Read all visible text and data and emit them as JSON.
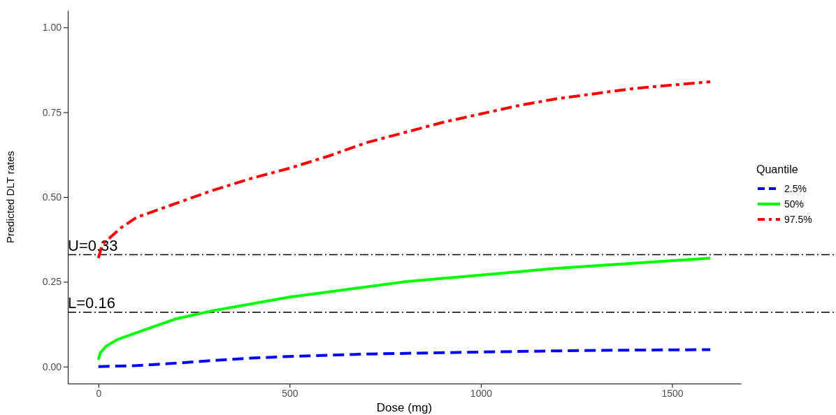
{
  "chart_data": {
    "type": "line",
    "xlabel": "Dose (mg)",
    "ylabel": "Predicted DLT rates",
    "legend_title": "Quantile",
    "legend": "right",
    "grid": false,
    "xlim": [
      -80,
      1680
    ],
    "ylim": [
      -0.05,
      1.05
    ],
    "xticks": [
      0,
      500,
      1000,
      1500
    ],
    "yticks": [
      {
        "value": 0,
        "label": "0.00"
      },
      {
        "value": 0.25,
        "label": "0.25"
      },
      {
        "value": 0.5,
        "label": "0.50"
      },
      {
        "value": 0.75,
        "label": "0.75"
      },
      {
        "value": 1,
        "label": "1.00"
      }
    ],
    "ref_lines": [
      {
        "axis": "y",
        "value": 0.33,
        "label": "U=0.33",
        "color": "#000000",
        "line_style": "dashed"
      },
      {
        "axis": "y",
        "value": 0.16,
        "label": "L=0.16",
        "color": "#000000",
        "line_style": "dashed"
      }
    ],
    "series": [
      {
        "name": "2.5%",
        "color": "#0000ff",
        "line_style": "dashed",
        "x": [
          0,
          100,
          200,
          300,
          400,
          500,
          700,
          1000,
          1300,
          1600
        ],
        "values": [
          0,
          0.003,
          0.01,
          0.018,
          0.025,
          0.03,
          0.037,
          0.043,
          0.048,
          0.05
        ]
      },
      {
        "name": "50%",
        "color": "#00ff00",
        "line_style": "solid",
        "x": [
          0,
          5,
          20,
          50,
          100,
          200,
          300,
          400,
          500,
          600,
          700,
          800,
          900,
          1000,
          1200,
          1400,
          1600
        ],
        "values": [
          0.02,
          0.04,
          0.06,
          0.08,
          0.1,
          0.14,
          0.165,
          0.185,
          0.205,
          0.22,
          0.235,
          0.25,
          0.26,
          0.27,
          0.29,
          0.305,
          0.32
        ]
      },
      {
        "name": "97.5%",
        "color": "#ff0000",
        "line_style": "dashed",
        "x": [
          0,
          10,
          30,
          60,
          100,
          150,
          200,
          300,
          400,
          500,
          600,
          700,
          800,
          900,
          1000,
          1100,
          1200,
          1300,
          1400,
          1500,
          1600
        ],
        "values": [
          0.32,
          0.36,
          0.38,
          0.41,
          0.44,
          0.46,
          0.48,
          0.52,
          0.555,
          0.585,
          0.62,
          0.66,
          0.69,
          0.72,
          0.745,
          0.77,
          0.79,
          0.805,
          0.82,
          0.83,
          0.84
        ]
      }
    ]
  }
}
